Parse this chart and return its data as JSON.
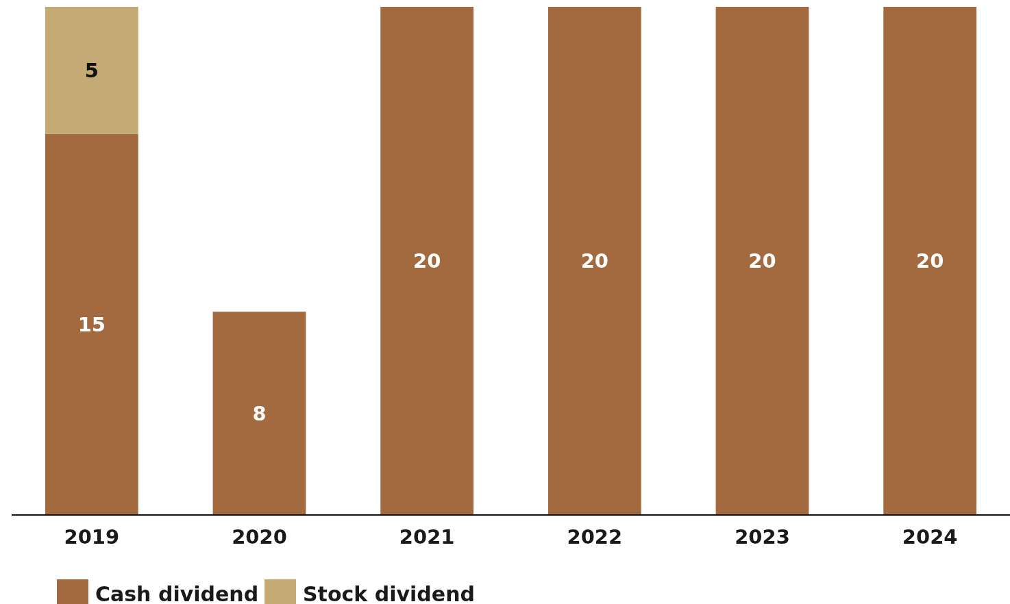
{
  "chart_data": {
    "type": "bar",
    "stacked": true,
    "data_labels": true,
    "legend": "bottom left",
    "categories": [
      "2019",
      "2020",
      "2021",
      "2022",
      "2023",
      "2024"
    ],
    "series": [
      {
        "name": "Cash dividend",
        "color": "#a36a3f",
        "values": [
          15,
          8,
          20,
          20,
          20,
          20
        ]
      },
      {
        "name": "Stock dividend",
        "color": "#c4aa74",
        "values": [
          5,
          null,
          null,
          null,
          null,
          null
        ]
      }
    ]
  }
}
